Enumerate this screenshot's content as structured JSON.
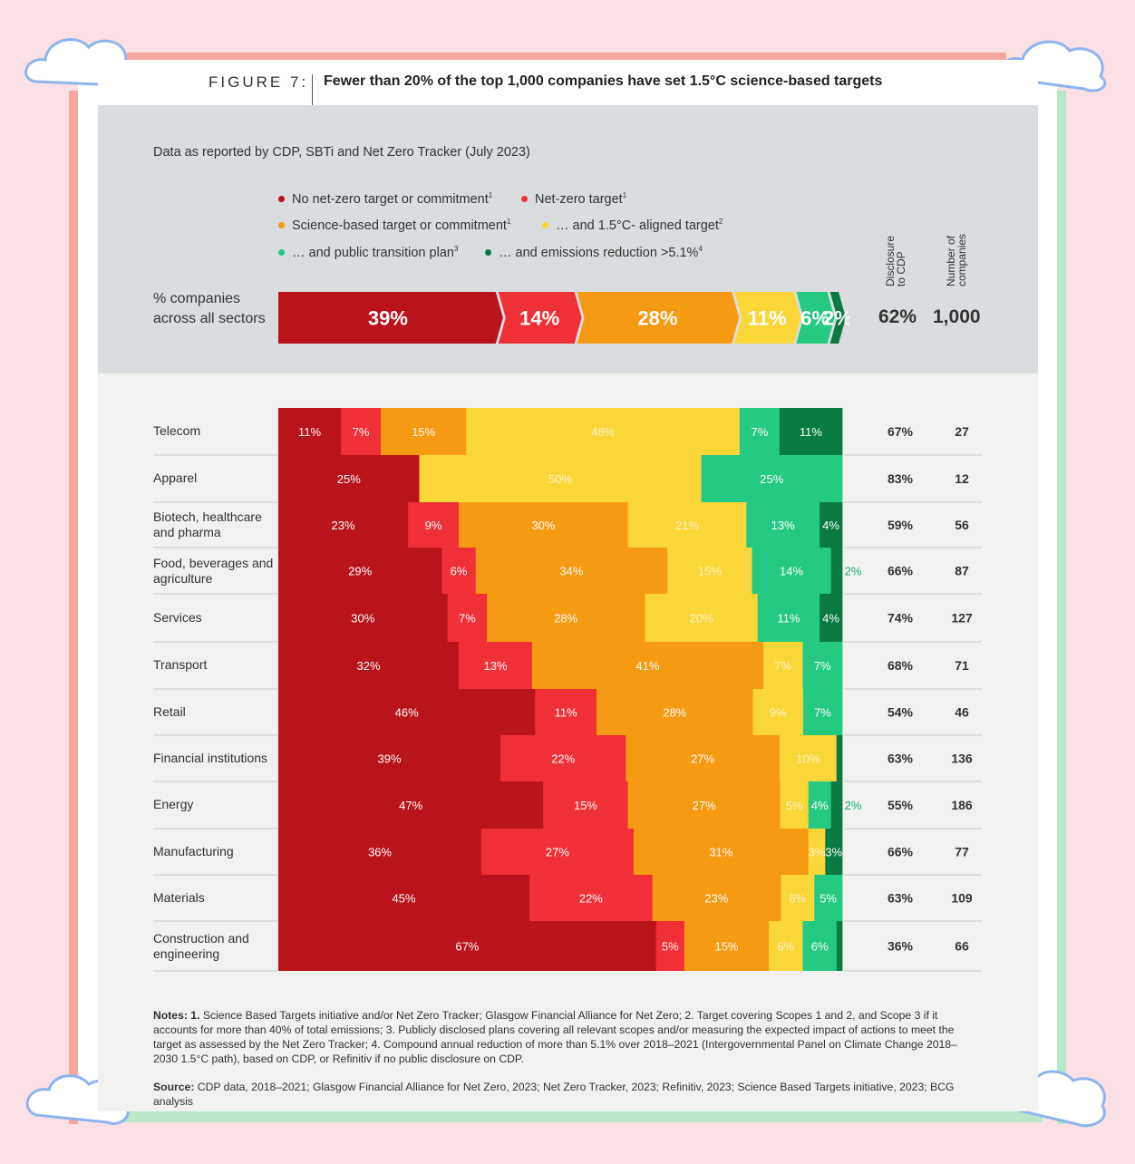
{
  "figure": {
    "label": "FIGURE 7:",
    "title": "Fewer than 20% of the top 1,000 companies have set 1.5°C science-based targets"
  },
  "subtitle": "Data as reported by CDP, SBTi and Net Zero Tracker (July 2023)",
  "legend": [
    {
      "label": "No net-zero target or commitment",
      "sup": "1",
      "color": "#b9141a"
    },
    {
      "label": "Net-zero target",
      "sup": "1",
      "color": "#f03037"
    },
    {
      "label": "Science-based target or commitment",
      "sup": "1",
      "color": "#f79a13"
    },
    {
      "label": "… and 1.5°C- aligned target",
      "sup": "2",
      "color": "#fbd638"
    },
    {
      "label": "… and public transition plan",
      "sup": "3",
      "color": "#24c982"
    },
    {
      "label": "… and emissions reduction >5.1%",
      "sup": "4",
      "color": "#0a7a43"
    }
  ],
  "column_headers": {
    "disclosure": "Disclosure\nto CDP",
    "number": "Number of\ncompanies"
  },
  "overall": {
    "label": "% companies across all sectors",
    "values": [
      39,
      14,
      28,
      11,
      6,
      2
    ],
    "value_labels": [
      "39%",
      "14%",
      "28%",
      "11%",
      "6%",
      "2%"
    ],
    "disclosure": "62%",
    "companies": "1,000"
  },
  "chart_data": {
    "type": "bar",
    "stacked": true,
    "orientation": "horizontal",
    "title": "Fewer than 20% of the top 1,000 companies have set 1.5°C science-based targets",
    "categories": [
      "Telecom",
      "Apparel",
      "Biotech, healthcare and pharma",
      "Food, beverages and agriculture",
      "Services",
      "Transport",
      "Retail",
      "Financial institutions",
      "Energy",
      "Manufacturing",
      "Materials",
      "Construction and engineering"
    ],
    "series": [
      {
        "name": "No net-zero target or commitment",
        "values": [
          11,
          25,
          23,
          29,
          30,
          32,
          46,
          39,
          47,
          36,
          45,
          67
        ]
      },
      {
        "name": "Net-zero target",
        "values": [
          7,
          0,
          9,
          6,
          7,
          13,
          11,
          22,
          15,
          27,
          22,
          5
        ]
      },
      {
        "name": "Science-based target or commitment",
        "values": [
          15,
          0,
          30,
          34,
          28,
          41,
          28,
          27,
          27,
          31,
          23,
          15
        ]
      },
      {
        "name": "… and 1.5°C- aligned target",
        "values": [
          48,
          50,
          21,
          15,
          20,
          7,
          9,
          10,
          5,
          3,
          6,
          6
        ]
      },
      {
        "name": "… and public transition plan",
        "values": [
          7,
          25,
          13,
          14,
          11,
          7,
          7,
          0,
          4,
          0,
          5,
          6
        ]
      },
      {
        "name": "… and emissions reduction >5.1%",
        "values": [
          11,
          0,
          4,
          2,
          4,
          0,
          0,
          1,
          2,
          3,
          0,
          1
        ]
      }
    ],
    "labels": [
      [
        "11%",
        "7%",
        "15%",
        "48%",
        "7%",
        "11%"
      ],
      [
        "25%",
        "",
        "",
        "50%",
        "25%",
        ""
      ],
      [
        "23%",
        "9%",
        "30%",
        "21%",
        "13%",
        "4%"
      ],
      [
        "29%",
        "6%",
        "34%",
        "15%",
        "14%",
        "2%"
      ],
      [
        "30%",
        "7%",
        "28%",
        "20%",
        "11%",
        "4%"
      ],
      [
        "32%",
        "13%",
        "41%",
        "7%",
        "7%",
        ""
      ],
      [
        "46%",
        "11%",
        "28%",
        "9%",
        "7%",
        ""
      ],
      [
        "39%",
        "22%",
        "27%",
        "10%",
        "",
        ""
      ],
      [
        "47%",
        "15%",
        "27%",
        "5%",
        "4%",
        "2%"
      ],
      [
        "36%",
        "27%",
        "31%",
        "3%",
        "",
        "3%"
      ],
      [
        "45%",
        "22%",
        "23%",
        "6%",
        "5%",
        ""
      ],
      [
        "67%",
        "5%",
        "15%",
        "6%",
        "6%",
        ""
      ]
    ],
    "disclosure_to_cdp": [
      "67%",
      "83%",
      "59%",
      "66%",
      "74%",
      "68%",
      "54%",
      "63%",
      "55%",
      "66%",
      "63%",
      "36%"
    ],
    "number_of_companies": [
      "27",
      "12",
      "56",
      "87",
      "127",
      "71",
      "46",
      "136",
      "186",
      "77",
      "109",
      "66"
    ]
  },
  "notes": {
    "prefix": "Notes: 1.",
    "text": " Science Based Targets initiative and/or Net Zero Tracker; Glasgow Financial Alliance for Net Zero; 2. Target covering Scopes 1 and 2, and Scope 3 if it accounts for more than 40% of total emissions; 3. Publicly disclosed plans covering all relevant scopes and/or measuring the expected impact of actions to meet the target as assessed by the Net Zero Tracker; 4. Compound annual reduction of more than 5.1% over 2018–2021 (Intergovernmental Panel on Climate Change 2018–2030 1.5°C path), based on CDP, or Refinitiv if no public disclosure on CDP."
  },
  "source": {
    "prefix": "Source:",
    "text": " CDP data, 2018–2021; Glasgow Financial Alliance for Net Zero, 2023; Net Zero Tracker, 2023; Refinitiv, 2023; Science Based Targets initiative, 2023; BCG analysis"
  }
}
